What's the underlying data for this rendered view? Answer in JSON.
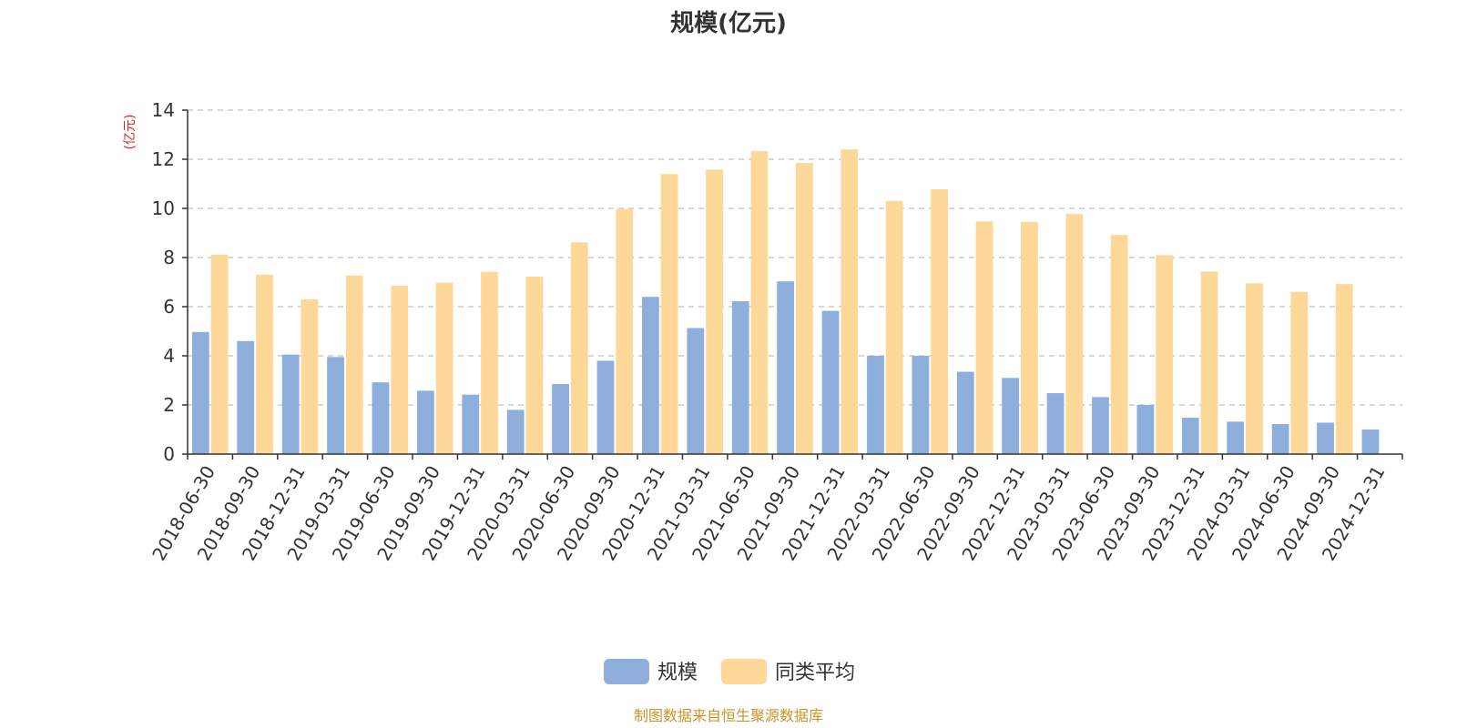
{
  "chart_data": {
    "type": "bar",
    "title": "规模(亿元)",
    "ylabel": "(亿元)",
    "ylim": [
      0,
      14
    ],
    "yticks": [
      "0",
      "2",
      "4",
      "6",
      "8",
      "10",
      "12",
      "14"
    ],
    "grid": true,
    "legend_position": "bottom-center",
    "categories": [
      "2018-06-30",
      "2018-09-30",
      "2018-12-31",
      "2019-03-31",
      "2019-06-30",
      "2019-09-30",
      "2019-12-31",
      "2020-03-31",
      "2020-06-30",
      "2020-09-30",
      "2020-12-31",
      "2021-03-31",
      "2021-06-30",
      "2021-09-30",
      "2021-12-31",
      "2022-03-31",
      "2022-06-30",
      "2022-09-30",
      "2022-12-31",
      "2023-03-31",
      "2023-06-30",
      "2023-09-30",
      "2023-12-31",
      "2024-03-31",
      "2024-06-30",
      "2024-09-30",
      "2024-12-31"
    ],
    "series": [
      {
        "name": "规模",
        "color": "#8eaedc",
        "values": [
          4.97,
          4.6,
          4.05,
          3.95,
          2.92,
          2.58,
          2.42,
          1.8,
          2.85,
          3.8,
          6.4,
          5.13,
          6.22,
          7.03,
          5.83,
          4.0,
          4.0,
          3.35,
          3.1,
          2.48,
          2.32,
          2.0,
          1.48,
          1.32,
          1.22,
          1.28,
          1.0
        ]
      },
      {
        "name": "同类平均",
        "color": "#fdd899",
        "values": [
          8.12,
          7.3,
          6.3,
          7.27,
          6.85,
          6.98,
          7.42,
          7.22,
          8.62,
          9.97,
          11.4,
          11.58,
          12.33,
          11.85,
          12.4,
          10.3,
          10.78,
          9.47,
          9.45,
          9.77,
          8.92,
          8.1,
          7.43,
          6.95,
          6.6,
          6.92,
          null
        ]
      }
    ],
    "source": "制图数据来自恒生聚源数据库"
  }
}
